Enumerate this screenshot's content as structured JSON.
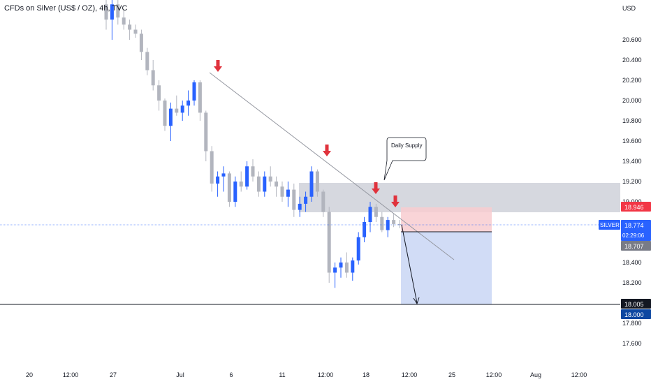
{
  "header": {
    "title": "CFDs on Silver (US$ / OZ), 4h, TVC"
  },
  "currency": "USD",
  "colors": {
    "bull": "#2962ff",
    "bear": "#b2b5be",
    "arrow": "#e0323c",
    "zone": "#d1d4dc",
    "stop": "#f8cdd0",
    "target": "#c9d6f5",
    "badge_blue": "#2962ff",
    "badge_red": "#f23645",
    "badge_gray": "#787b86",
    "badge_black": "#131722",
    "badge_navy": "#0d47a1"
  },
  "chart_data": {
    "type": "candlestick",
    "y_ticks": [
      "20.600",
      "20.400",
      "20.200",
      "20.000",
      "19.800",
      "19.600",
      "19.400",
      "19.200",
      "19.000",
      "18.400",
      "18.200",
      "17.800",
      "17.600"
    ],
    "ylim": [
      17.5,
      20.9
    ],
    "x_ticks": [
      "20",
      "12:00",
      "27",
      "Jul",
      "6",
      "11",
      "12:00",
      "18",
      "12:00",
      "25",
      "12:00",
      "Aug",
      "12:00"
    ],
    "candles": [
      [
        20.95,
        21.05,
        20.7,
        20.8
      ],
      [
        20.8,
        21.0,
        20.6,
        20.95
      ],
      [
        20.95,
        21.0,
        20.75,
        20.82
      ],
      [
        20.82,
        20.9,
        20.7,
        20.75
      ],
      [
        20.75,
        20.8,
        20.6,
        20.7
      ],
      [
        20.7,
        20.75,
        20.62,
        20.66
      ],
      [
        20.66,
        20.7,
        20.4,
        20.48
      ],
      [
        20.48,
        20.52,
        20.25,
        20.3
      ],
      [
        20.3,
        20.4,
        20.1,
        20.15
      ],
      [
        20.15,
        20.2,
        19.9,
        20.0
      ],
      [
        20.0,
        20.02,
        19.7,
        19.75
      ],
      [
        19.75,
        19.98,
        19.6,
        19.92
      ],
      [
        19.92,
        20.05,
        19.85,
        19.88
      ],
      [
        19.88,
        20.0,
        19.8,
        19.95
      ],
      [
        19.95,
        20.1,
        19.85,
        20.0
      ],
      [
        20.0,
        20.2,
        19.95,
        20.18
      ],
      [
        20.18,
        20.2,
        19.8,
        19.88
      ],
      [
        19.88,
        19.9,
        19.4,
        19.5
      ],
      [
        19.5,
        19.55,
        19.1,
        19.18
      ],
      [
        19.18,
        19.3,
        19.05,
        19.25
      ],
      [
        19.25,
        19.35,
        19.1,
        19.28
      ],
      [
        19.28,
        19.3,
        18.95,
        19.0
      ],
      [
        19.0,
        19.25,
        18.95,
        19.2
      ],
      [
        19.2,
        19.3,
        19.1,
        19.15
      ],
      [
        19.15,
        19.4,
        19.12,
        19.35
      ],
      [
        19.35,
        19.42,
        19.2,
        19.25
      ],
      [
        19.25,
        19.3,
        19.05,
        19.1
      ],
      [
        19.1,
        19.3,
        19.05,
        19.25
      ],
      [
        19.25,
        19.35,
        19.15,
        19.2
      ],
      [
        19.2,
        19.25,
        19.05,
        19.15
      ],
      [
        19.15,
        19.2,
        19.0,
        19.05
      ],
      [
        19.05,
        19.2,
        18.95,
        19.12
      ],
      [
        19.12,
        19.18,
        18.85,
        18.92
      ],
      [
        18.92,
        19.05,
        18.85,
        18.98
      ],
      [
        18.98,
        19.1,
        18.9,
        19.05
      ],
      [
        19.05,
        19.35,
        19.0,
        19.3
      ],
      [
        19.3,
        19.32,
        19.05,
        19.1
      ],
      [
        19.1,
        19.12,
        18.85,
        18.9
      ],
      [
        18.9,
        18.95,
        18.2,
        18.3
      ],
      [
        18.3,
        18.4,
        18.15,
        18.35
      ],
      [
        18.35,
        18.45,
        18.25,
        18.4
      ],
      [
        18.4,
        18.5,
        18.25,
        18.3
      ],
      [
        18.3,
        18.45,
        18.22,
        18.42
      ],
      [
        18.42,
        18.7,
        18.38,
        18.65
      ],
      [
        18.65,
        18.85,
        18.6,
        18.8
      ],
      [
        18.8,
        19.0,
        18.7,
        18.95
      ],
      [
        18.95,
        18.98,
        18.8,
        18.85
      ],
      [
        18.85,
        18.9,
        18.7,
        18.72
      ],
      [
        18.72,
        18.85,
        18.65,
        18.82
      ],
      [
        18.82,
        18.88,
        18.75,
        18.78
      ],
      [
        18.78,
        18.82,
        18.74,
        18.77
      ]
    ],
    "annotation": "Daily Supply",
    "badges": {
      "symbol": "SILVER",
      "last_price": "18.774",
      "countdown": "02:29:06",
      "stop": "18.946",
      "entry": "18.707",
      "hline": "18.005",
      "target": "18.000"
    }
  }
}
